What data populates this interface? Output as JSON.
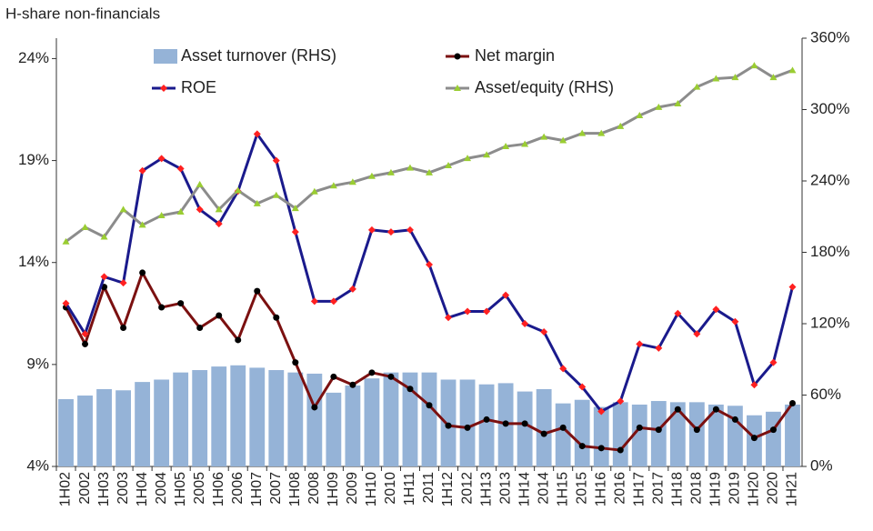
{
  "chart_data": {
    "type": "combo",
    "title": "H-share non-financials",
    "categories": [
      "1H02",
      "2002",
      "1H03",
      "2003",
      "1H04",
      "2004",
      "1H05",
      "2005",
      "1H06",
      "2006",
      "1H07",
      "2007",
      "1H08",
      "2008",
      "1H09",
      "2009",
      "1H10",
      "2010",
      "1H11",
      "2011",
      "1H12",
      "2012",
      "1H13",
      "2013",
      "1H14",
      "2014",
      "1H15",
      "2015",
      "1H16",
      "2016",
      "1H17",
      "2017",
      "1H18",
      "2018",
      "1H19",
      "2019",
      "1H20",
      "2020",
      "1H21"
    ],
    "series": [
      {
        "name": "Asset turnover (RHS)",
        "kind": "bar",
        "axis": "y2",
        "color": "#95b3d7",
        "values": [
          56.6,
          59.6,
          65,
          64,
          71,
          73,
          79,
          81,
          84,
          85,
          83,
          81,
          79,
          78,
          62,
          68,
          74,
          79,
          79,
          79,
          73,
          73,
          69,
          70,
          63,
          65,
          53,
          56,
          50,
          54,
          52,
          55,
          54,
          54,
          52,
          51,
          43,
          46,
          52
        ]
      },
      {
        "name": "Net margin",
        "kind": "line",
        "color": "#7b1010",
        "marker": "circle",
        "marker_color": "#000000",
        "values": [
          11.8,
          10.0,
          12.8,
          10.8,
          13.5,
          11.8,
          12.0,
          10.8,
          11.4,
          10.2,
          12.6,
          11.3,
          9.1,
          6.9,
          8.4,
          8.0,
          8.6,
          8.4,
          7.8,
          7.0,
          6.0,
          5.9,
          6.3,
          6.1,
          6.1,
          5.6,
          5.9,
          5.0,
          4.9,
          4.8,
          5.9,
          5.8,
          6.8,
          5.8,
          6.8,
          6.3,
          5.4,
          5.8,
          7.1
        ]
      },
      {
        "name": "ROE",
        "kind": "line",
        "color": "#1a1a8c",
        "marker": "diamond",
        "marker_color": "#ff2020",
        "values": [
          12.0,
          10.5,
          13.3,
          13.0,
          18.5,
          19.1,
          18.6,
          16.6,
          15.9,
          17.5,
          20.3,
          19.0,
          15.5,
          12.1,
          12.1,
          12.7,
          15.6,
          15.5,
          15.6,
          13.9,
          11.3,
          11.6,
          11.6,
          12.4,
          11.0,
          10.6,
          8.8,
          7.9,
          6.7,
          7.2,
          10.0,
          9.8,
          11.5,
          10.5,
          11.7,
          11.1,
          8.0,
          9.1,
          12.8
        ]
      },
      {
        "name": "Asset/equity (RHS)",
        "kind": "line",
        "axis": "y2",
        "color": "#8c8c8c",
        "marker": "triangle",
        "marker_color": "#9acd32",
        "values": [
          189,
          201,
          193,
          216,
          203,
          211,
          214,
          237,
          216,
          232,
          221,
          228,
          217,
          231,
          236,
          239,
          244,
          247,
          251,
          247,
          253,
          259,
          262,
          269,
          271,
          277,
          274,
          280,
          280,
          286,
          295,
          302,
          305,
          319,
          326,
          327,
          337,
          327,
          333
        ]
      }
    ],
    "ylim": [
      4,
      25
    ],
    "yticks": [
      {
        "value": 4,
        "label": "4%"
      },
      {
        "value": 9,
        "label": "9%"
      },
      {
        "value": 14,
        "label": "14%"
      },
      {
        "value": 19,
        "label": "19%"
      },
      {
        "value": 24,
        "label": "24%"
      }
    ],
    "y2lim": [
      0,
      360
    ],
    "y2ticks": [
      {
        "value": 0,
        "label": "0%"
      },
      {
        "value": 60,
        "label": "60%"
      },
      {
        "value": 120,
        "label": "120%"
      },
      {
        "value": 180,
        "label": "180%"
      },
      {
        "value": 240,
        "label": "240%"
      },
      {
        "value": 300,
        "label": "300%"
      },
      {
        "value": 360,
        "label": "360%"
      }
    ],
    "grid": false
  }
}
